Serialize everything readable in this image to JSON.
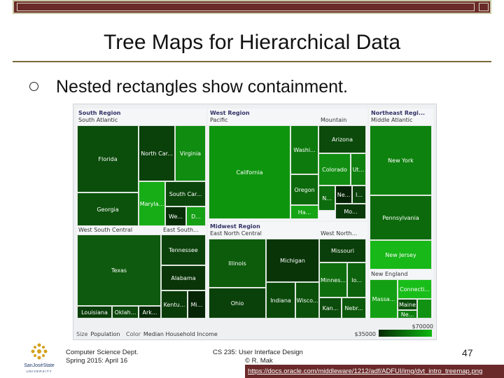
{
  "slide": {
    "title": "Tree Maps for Hierarchical Data",
    "bullet": "Nested rectangles show containment.",
    "footer_left_1": "Computer Science Dept.",
    "footer_left_2": "Spring 2015: April 16",
    "footer_center_1": "CS 235: User Interface Design",
    "footer_center_2": "© R. Mak",
    "page_number": "47",
    "url": "https://docs.oracle.com/middleware/1212/adf/ADFUI/img/dvt_intro_treemap.png",
    "logo_text_1": "SanJoséState",
    "logo_text_2": "UNIVERSITY",
    "colors": {
      "bar": "#6b2a2a",
      "rule": "#7a6a3a"
    }
  },
  "treemap": {
    "regions": {
      "south": "South Region",
      "west": "West Region",
      "northeast": "Northeast Regi...",
      "midwest": "Midwest Region"
    },
    "subregions": {
      "south_atlantic": "South Atlantic",
      "west_south_central": "West South Central",
      "east_south": "East South...",
      "pacific": "Pacific",
      "mountain": "Mountain",
      "east_north_central": "East North Central",
      "west_north": "West North...",
      "middle_atlantic": "Middle Atlantic",
      "new_england": "New England"
    },
    "states": {
      "florida": "Florida",
      "north_car": "North Car...",
      "virginia": "Virginia",
      "georgia": "Georgia",
      "maryland": "Maryla...",
      "south_car": "South Car...",
      "we": "We...",
      "d": "D...",
      "texas": "Texas",
      "louisiana": "Louisiana",
      "oklah": "Oklah...",
      "ark": "Ark...",
      "tennessee": "Tennessee",
      "alabama": "Alabama",
      "kentu": "Kentu...",
      "mi": "Mi...",
      "california": "California",
      "washi": "Washi...",
      "oregon": "Oregon",
      "ha": "Ha...",
      "arizona": "Arizona",
      "colorado": "Colorado",
      "ut": "Ut...",
      "n": "N...",
      "ne": "Ne...",
      "i": "I...",
      "mo2": "Mo...",
      "illinois": "Illinois",
      "michigan": "Michigan",
      "ohio": "Ohio",
      "indiana": "Indiana",
      "wisco": "Wisco...",
      "missouri": "Missouri",
      "minnes": "Minnes...",
      "io": "Io...",
      "kan": "Kan...",
      "nebr": "Nebr...",
      "new_york": "New York",
      "pennsylvania": "Pennsylvania",
      "new_jersey": "New Jersey",
      "massa": "Massa...",
      "connecti": "Connecti...",
      "maine": "Maine",
      "ne2": "Ne..."
    },
    "legend": {
      "size_label": "Size",
      "size_value": "Population",
      "color_label": "Color",
      "color_value": "Median Household Income",
      "min": "$35000",
      "max": "$70000"
    }
  }
}
